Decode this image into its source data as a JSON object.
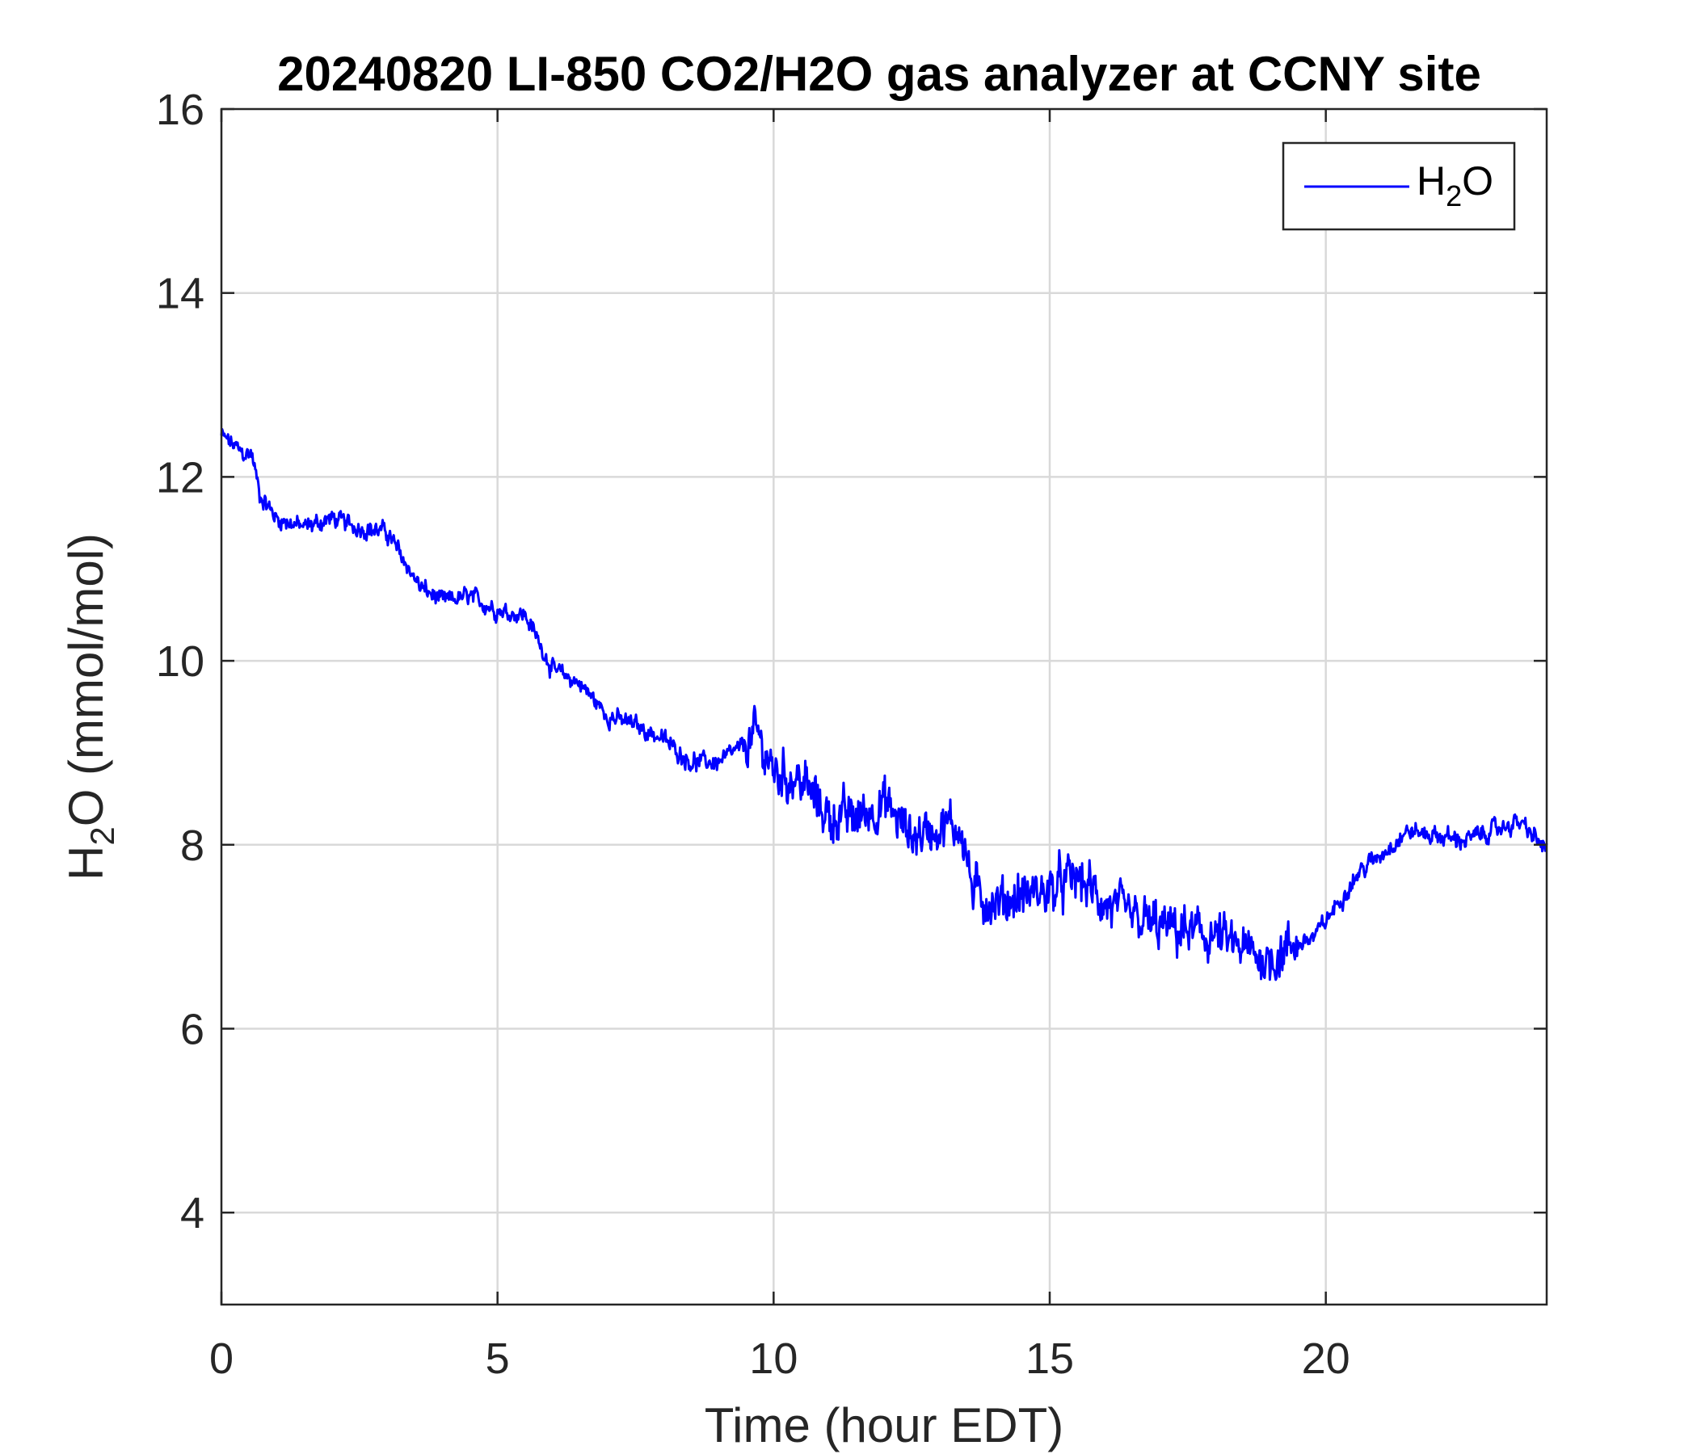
{
  "chart_data": {
    "type": "line",
    "title": "20240820 LI-850 CO2/H2O gas analyzer at CCNY site",
    "xlabel": "Time (hour EDT)",
    "ylabel": {
      "main": "H",
      "sub": "2",
      "rest": "O (mmol/mol)"
    },
    "xlim": [
      0,
      24
    ],
    "ylim": [
      3,
      16
    ],
    "xticks": [
      0,
      5,
      10,
      15,
      20
    ],
    "xtick_labels": [
      "0",
      "5",
      "10",
      "15",
      "20"
    ],
    "yticks": [
      4,
      6,
      8,
      10,
      12,
      14,
      16
    ],
    "ytick_labels": [
      "4",
      "6",
      "8",
      "10",
      "12",
      "14",
      "16"
    ],
    "grid": true,
    "legend": {
      "position": "top-right"
    },
    "series": [
      {
        "name": {
          "main": "H",
          "sub": "2",
          "rest": "O"
        },
        "color": "#0000ff",
        "x": [
          0,
          0.2,
          0.4,
          0.55,
          0.7,
          1.0,
          1.5,
          2.0,
          2.5,
          3.0,
          3.3,
          3.6,
          4.0,
          4.5,
          5.0,
          5.5,
          5.8,
          6.0,
          6.5,
          7.0,
          7.5,
          8.0,
          8.5,
          9.0,
          9.4,
          9.7,
          10.0,
          10.5,
          11.0,
          11.5,
          12.0,
          12.5,
          13.0,
          13.4,
          13.6,
          14.0,
          14.5,
          15.0,
          15.5,
          16.0,
          16.5,
          17.0,
          17.5,
          18.0,
          18.5,
          19.0,
          19.4,
          19.8,
          20.2,
          20.6,
          21.0,
          21.5,
          22.0,
          22.5,
          23.0,
          23.5,
          24.0
        ],
        "y": [
          12.45,
          12.35,
          12.25,
          12.25,
          11.8,
          11.55,
          11.45,
          11.55,
          11.45,
          11.4,
          11.1,
          10.8,
          10.65,
          10.7,
          10.55,
          10.5,
          10.15,
          9.9,
          9.75,
          9.4,
          9.3,
          9.15,
          8.9,
          8.9,
          9.05,
          9.2,
          8.8,
          8.7,
          8.3,
          8.3,
          8.45,
          8.1,
          8.2,
          8.2,
          7.5,
          7.35,
          7.45,
          7.5,
          7.65,
          7.35,
          7.2,
          7.1,
          7.05,
          7.0,
          6.85,
          6.75,
          6.9,
          7.0,
          7.35,
          7.7,
          7.9,
          8.15,
          8.1,
          8.05,
          8.15,
          8.25,
          7.95
        ]
      }
    ]
  }
}
